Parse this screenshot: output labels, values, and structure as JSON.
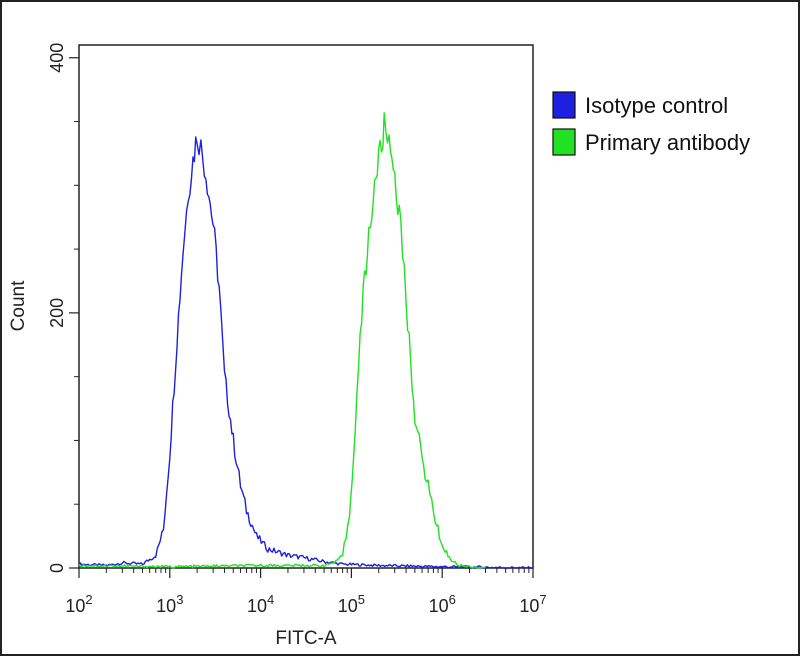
{
  "chart_data": {
    "type": "line",
    "title": "",
    "xlabel": "FITC-A",
    "ylabel": "Count",
    "x_scale": "log",
    "xlim": [
      100,
      10000000
    ],
    "ylim": [
      0,
      410
    ],
    "x_ticks": [
      {
        "value": 100,
        "base": "10",
        "exp": "2"
      },
      {
        "value": 1000,
        "base": "10",
        "exp": "3"
      },
      {
        "value": 10000,
        "base": "10",
        "exp": "4"
      },
      {
        "value": 100000,
        "base": "10",
        "exp": "5"
      },
      {
        "value": 1000000,
        "base": "10",
        "exp": "6"
      },
      {
        "value": 10000000,
        "base": "10",
        "exp": "7"
      }
    ],
    "y_ticks": [
      0,
      200,
      400
    ],
    "grid": false,
    "legend_position": "right",
    "series": [
      {
        "name": "Isotype control",
        "color": "#1f1fe0",
        "points": [
          [
            100,
            3
          ],
          [
            200,
            2
          ],
          [
            300,
            4
          ],
          [
            500,
            3
          ],
          [
            700,
            10
          ],
          [
            850,
            30
          ],
          [
            1000,
            90
          ],
          [
            1200,
            180
          ],
          [
            1400,
            250
          ],
          [
            1600,
            295
          ],
          [
            1800,
            320
          ],
          [
            2000,
            340
          ],
          [
            2200,
            330
          ],
          [
            2500,
            310
          ],
          [
            3000,
            270
          ],
          [
            3500,
            220
          ],
          [
            4000,
            150
          ],
          [
            4500,
            125
          ],
          [
            5000,
            100
          ],
          [
            6000,
            65
          ],
          [
            7000,
            45
          ],
          [
            9000,
            25
          ],
          [
            12000,
            15
          ],
          [
            20000,
            10
          ],
          [
            30000,
            8
          ],
          [
            50000,
            5
          ],
          [
            80000,
            3
          ],
          [
            200000,
            2
          ],
          [
            1000000,
            1
          ],
          [
            10000000,
            0
          ]
        ]
      },
      {
        "name": "Primary antibody",
        "color": "#22e022",
        "points": [
          [
            100,
            2
          ],
          [
            1000,
            1
          ],
          [
            10000,
            2
          ],
          [
            50000,
            2
          ],
          [
            70000,
            5
          ],
          [
            80000,
            10
          ],
          [
            95000,
            40
          ],
          [
            110000,
            110
          ],
          [
            130000,
            200
          ],
          [
            150000,
            250
          ],
          [
            180000,
            300
          ],
          [
            200000,
            320
          ],
          [
            230000,
            345
          ],
          [
            260000,
            335
          ],
          [
            300000,
            310
          ],
          [
            350000,
            265
          ],
          [
            400000,
            210
          ],
          [
            450000,
            160
          ],
          [
            500000,
            120
          ],
          [
            600000,
            85
          ],
          [
            700000,
            65
          ],
          [
            800000,
            45
          ],
          [
            900000,
            30
          ],
          [
            1000000,
            18
          ],
          [
            1200000,
            8
          ],
          [
            1500000,
            2
          ],
          [
            3000000,
            0
          ]
        ]
      }
    ]
  }
}
